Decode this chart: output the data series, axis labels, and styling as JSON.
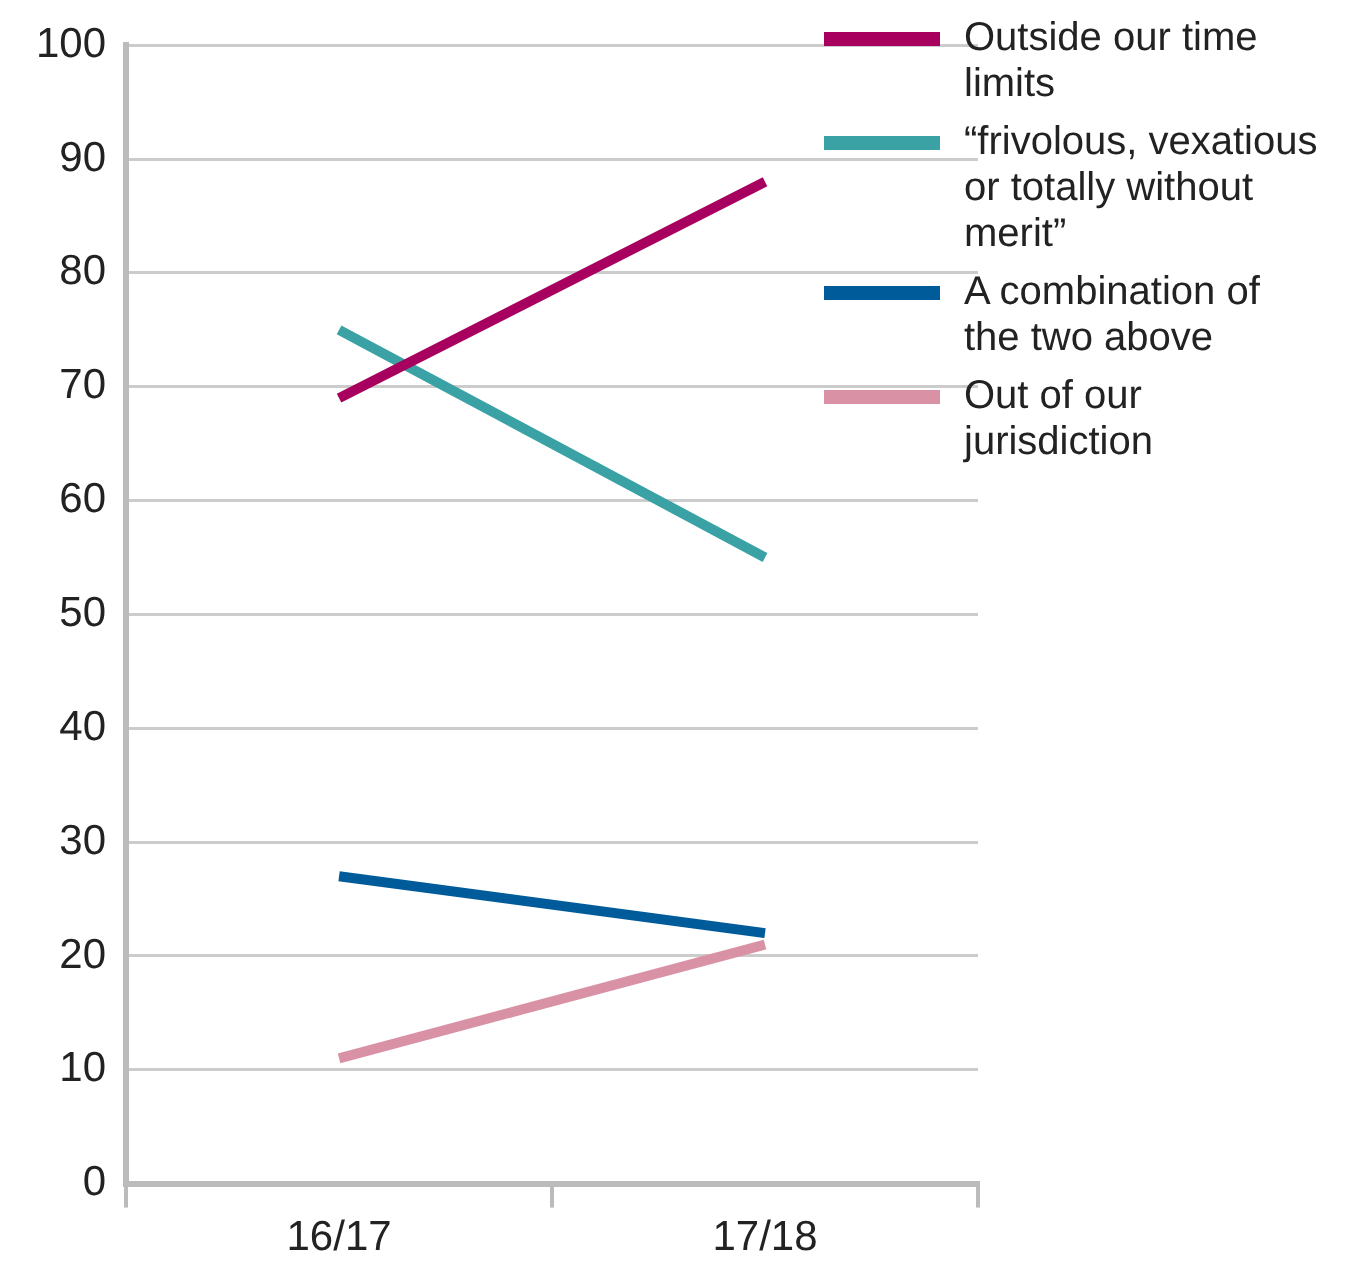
{
  "chart_data": {
    "type": "line",
    "categories": [
      "16/17",
      "17/18"
    ],
    "series": [
      {
        "name": "Outside our time limits",
        "color": "#a8005e",
        "values": [
          69,
          88
        ]
      },
      {
        "name": "“frivolous, vexatious or totally without merit”",
        "color": "#3aa2a5",
        "values": [
          75,
          55
        ]
      },
      {
        "name": "A combination of the two above",
        "color": "#005b9a",
        "values": [
          27,
          22
        ]
      },
      {
        "name": "Out of our jurisdiction",
        "color": "#d991a6",
        "values": [
          11,
          21
        ]
      }
    ],
    "ylim": [
      0,
      100
    ],
    "yticks": [
      0,
      10,
      20,
      30,
      40,
      50,
      60,
      70,
      80,
      90,
      100
    ],
    "grid": "y",
    "legend": "right",
    "marker": "none"
  }
}
